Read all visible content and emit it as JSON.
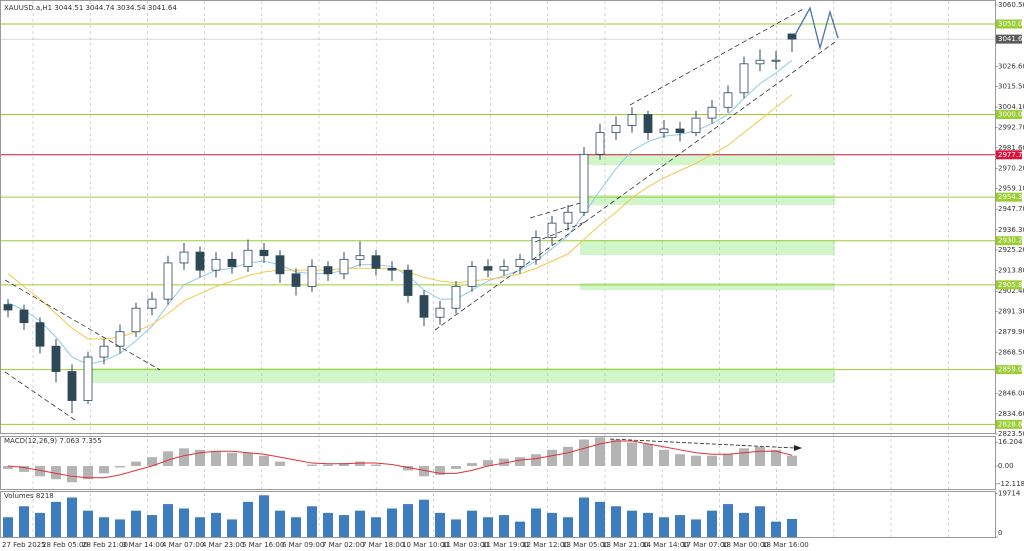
{
  "chart_data": {
    "type": "candlestick",
    "title": "XAUUSD.a,H1 3044.51 3044.74 3034.54 3041.64",
    "time_labels": [
      "27 Feb 2025",
      "28 Feb 05:00",
      "28 Feb 21:00",
      "3 Mar 14:00",
      "4 Mar 07:00",
      "4 Mar 23:00",
      "5 Mar 16:00",
      "6 Mar 09:00",
      "7 Mar 02:00",
      "7 Mar 18:00",
      "10 Mar 10:00",
      "11 Mar 03:00",
      "11 Mar 19:00",
      "12 Mar 12:00",
      "13 Mar 05:00",
      "13 Mar 21:00",
      "14 Mar 14:00",
      "17 Mar 07:00",
      "18 Mar 00:00",
      "18 Mar 16:00"
    ],
    "open": [
      2895,
      2892,
      2885,
      2872,
      2858,
      2842,
      2866,
      2872,
      2880,
      2893,
      2898,
      2918,
      2924,
      2914,
      2920,
      2916,
      2925,
      2922,
      2912,
      2905,
      2916,
      2912,
      2920,
      2922,
      2915,
      2914,
      2900,
      2888,
      2893,
      2905,
      2916,
      2914,
      2916,
      2920,
      2932,
      2940,
      2946,
      2978,
      2990,
      2994,
      3000,
      2990,
      2992,
      2990,
      2998,
      3004,
      3012,
      3028,
      3030,
      3044.51
    ],
    "high": [
      2898,
      2895,
      2888,
      2876,
      2862,
      2869,
      2876,
      2884,
      2896,
      2902,
      2922,
      2929,
      2927,
      2924,
      2924,
      2931,
      2929,
      2925,
      2915,
      2920,
      2919,
      2924,
      2930,
      2925,
      2919,
      2917,
      2903,
      2897,
      2908,
      2919,
      2920,
      2920,
      2923,
      2936,
      2944,
      2950,
      2982,
      2995,
      2999,
      3004,
      3002,
      2997,
      2996,
      3002,
      3008,
      3016,
      3032,
      3036,
      3035,
      3044.74
    ],
    "low": [
      2888,
      2881,
      2868,
      2852,
      2835,
      2840,
      2862,
      2868,
      2877,
      2889,
      2895,
      2914,
      2910,
      2910,
      2912,
      2913,
      2918,
      2907,
      2900,
      2902,
      2908,
      2909,
      2916,
      2911,
      2908,
      2896,
      2883,
      2884,
      2890,
      2902,
      2910,
      2911,
      2912,
      2917,
      2928,
      2936,
      2944,
      2975,
      2986,
      2990,
      2986,
      2987,
      2985,
      2988,
      2995,
      3001,
      3009,
      3024,
      3025,
      3034.54
    ],
    "close": [
      2892,
      2885,
      2872,
      2858,
      2842,
      2866,
      2872,
      2880,
      2893,
      2898,
      2918,
      2924,
      2914,
      2920,
      2916,
      2925,
      2922,
      2912,
      2905,
      2916,
      2912,
      2920,
      2922,
      2915,
      2914,
      2900,
      2888,
      2893,
      2905,
      2916,
      2914,
      2916,
      2920,
      2932,
      2940,
      2946,
      2978,
      2990,
      2994,
      3000,
      2990,
      2992,
      2990,
      2998,
      3004,
      3012,
      3028,
      3030,
      3030,
      3041.64
    ],
    "bull_color": "#ffffff",
    "bear_color": "#2f4858",
    "series": [
      {
        "color": "#8ec9ec",
        "values": [
          2896,
          2892,
          2886,
          2877,
          2866,
          2862,
          2864,
          2868,
          2875,
          2883,
          2895,
          2906,
          2910,
          2914,
          2915,
          2918,
          2919,
          2917,
          2913,
          2912,
          2912,
          2914,
          2917,
          2917,
          2916,
          2911,
          2903,
          2898,
          2898,
          2903,
          2908,
          2911,
          2914,
          2919,
          2926,
          2933,
          2945,
          2958,
          2970,
          2980,
          2985,
          2988,
          2989,
          2991,
          2995,
          3000,
          3009,
          3017,
          3023,
          3030
        ]
      },
      {
        "color": "#f2c94c",
        "values": [
          2912,
          2905,
          2898,
          2890,
          2882,
          2876,
          2876,
          2877,
          2880,
          2884,
          2890,
          2897,
          2901,
          2905,
          2908,
          2911,
          2913,
          2914,
          2914,
          2914,
          2914,
          2915,
          2915,
          2915,
          2915,
          2913,
          2910,
          2908,
          2907,
          2908,
          2909,
          2910,
          2912,
          2915,
          2919,
          2923,
          2931,
          2939,
          2946,
          2954,
          2960,
          2965,
          2969,
          2973,
          2978,
          2983,
          2990,
          2997,
          3004,
          3011
        ]
      }
    ],
    "ylim": [
      2823.5,
      3060.5
    ],
    "yticks": [
      {
        "value": 3060.5,
        "label": "3060.50"
      },
      {
        "value": 3026.6,
        "label": "3026.60"
      },
      {
        "value": 3015.5,
        "label": "3015.50"
      },
      {
        "value": 3004.1,
        "label": "3004.10"
      },
      {
        "value": 2992.7,
        "label": "2992.70"
      },
      {
        "value": 2981.6,
        "label": "2981.60"
      },
      {
        "value": 2970.2,
        "label": "2970.20"
      },
      {
        "value": 2959.1,
        "label": "2959.10"
      },
      {
        "value": 2947.7,
        "label": "2947.70"
      },
      {
        "value": 2936.3,
        "label": "2936.30"
      },
      {
        "value": 2925.2,
        "label": "2925.20"
      },
      {
        "value": 2913.8,
        "label": "2913.80"
      },
      {
        "value": 2902.4,
        "label": "2902.40"
      },
      {
        "value": 2891.3,
        "label": "2891.30"
      },
      {
        "value": 2879.9,
        "label": "2879.90"
      },
      {
        "value": 2868.5,
        "label": "2868.50"
      },
      {
        "value": 2846,
        "label": "2846.00"
      },
      {
        "value": 2834.6,
        "label": "2834.60"
      },
      {
        "value": 2823.5,
        "label": "2823.50"
      }
    ],
    "levels": [
      {
        "value": 3050,
        "label": "3050.00",
        "color": "#9acd32"
      },
      {
        "value": 3000,
        "label": "3000.00",
        "color": "#9acd32"
      },
      {
        "value": 2977.75,
        "label": "2977.75",
        "color": "#dc143c"
      },
      {
        "value": 2954.33,
        "label": "2954.33",
        "color": "#9acd32"
      },
      {
        "value": 2930.28,
        "label": "2930.28",
        "color": "#9acd32"
      },
      {
        "value": 2905.89,
        "label": "2905.89",
        "color": "#9acd32"
      },
      {
        "value": 2859.05,
        "label": "2859.05",
        "color": "#9acd32"
      },
      {
        "value": 2828.83,
        "label": "2828.83",
        "color": "#9acd32"
      }
    ],
    "current_price": {
      "value": 3041.64,
      "label": "3041.64"
    },
    "macd": {
      "title": "MACD(12,26,9) 7.063 7.355",
      "histogram": [
        -2,
        -4,
        -7,
        -9,
        -11,
        -9,
        -5,
        -1,
        3,
        6,
        10,
        12,
        11,
        10,
        9,
        9,
        7,
        3,
        0,
        1,
        1,
        2,
        3,
        1,
        0,
        -3,
        -7,
        -6,
        -2,
        2,
        4,
        5,
        6,
        8,
        11,
        13,
        18,
        19.5,
        18,
        16,
        15,
        11,
        8,
        7,
        7,
        8,
        12,
        13,
        11,
        7.063
      ],
      "signal": [
        0,
        -1,
        -3,
        -5,
        -7,
        -8,
        -8,
        -6,
        -3,
        0,
        4,
        7,
        9,
        10,
        10,
        9,
        8,
        6,
        4,
        2,
        1.5,
        1.5,
        2,
        2,
        1,
        -1,
        -3,
        -5,
        -5,
        -3,
        0,
        2,
        4,
        5,
        7,
        9,
        12,
        15,
        17,
        17,
        15,
        13,
        11,
        9,
        8,
        8,
        9,
        10,
        10,
        7.355
      ],
      "histogram_color": "#b4b4b4",
      "signal_color": "#e0303a",
      "ylim": [
        -16.3,
        19.7
      ],
      "yticks": [
        {
          "value": 16.204,
          "label": "16.204"
        },
        {
          "value": 0,
          "label": "0.00"
        },
        {
          "value": -12.118,
          "label": "-12.118"
        }
      ]
    },
    "volume": {
      "title": "Volumes 8218",
      "values": [
        9000,
        14000,
        11000,
        16000,
        18000,
        12000,
        9000,
        8000,
        12000,
        10000,
        15000,
        13000,
        9000,
        11000,
        8000,
        16000,
        19000,
        12000,
        9000,
        14000,
        11000,
        10000,
        12000,
        9000,
        13000,
        15000,
        17000,
        11000,
        8000,
        12000,
        9000,
        10000,
        7000,
        13000,
        11000,
        9000,
        18000,
        16000,
        14000,
        12000,
        11000,
        9000,
        10000,
        8000,
        12000,
        15000,
        11000,
        14000,
        7000,
        8218
      ],
      "color": "#3d7dbf",
      "ylim": [
        0,
        20500
      ],
      "yticks": [
        19714,
        0
      ]
    }
  }
}
